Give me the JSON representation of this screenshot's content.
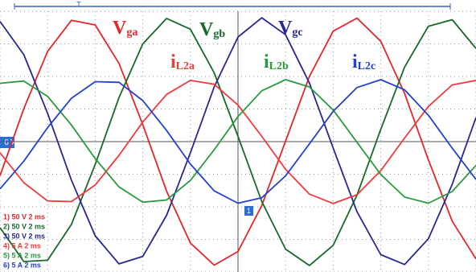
{
  "chart_data": {
    "type": "line",
    "x": [
      0,
      0.5,
      1,
      1.5,
      2,
      2.5,
      3,
      3.5,
      4,
      4.5,
      5,
      5.5,
      6,
      6.5,
      7,
      7.5,
      8,
      8.5,
      9,
      9.5,
      10
    ],
    "xlim": [
      0,
      10
    ],
    "ylim": [
      -4,
      4
    ],
    "grid": true,
    "series": [
      {
        "name": "Vga",
        "color": "#e3262b",
        "values": [
          -1.05,
          1.01,
          2.77,
          3.72,
          3.58,
          2.4,
          0.52,
          -1.52,
          -3.11,
          -3.79,
          -3.37,
          -1.96,
          0.02,
          2.0,
          3.39,
          3.79,
          3.08,
          1.48,
          -0.56,
          -2.44,
          -3.6
        ]
      },
      {
        "name": "Vgb",
        "color": "#17682a",
        "values": [
          -2.64,
          -3.68,
          -3.64,
          -2.54,
          -0.7,
          1.35,
          3.0,
          3.78,
          3.45,
          2.11,
          0.16,
          -1.84,
          -3.3,
          -3.8,
          -3.18,
          -1.64,
          0.38,
          2.29,
          3.54,
          3.74,
          2.86
        ]
      },
      {
        "name": "Vgc",
        "color": "#27278f",
        "values": [
          3.69,
          2.67,
          0.87,
          -1.18,
          -2.89,
          -3.75,
          -3.52,
          -2.26,
          -0.34,
          1.68,
          3.21,
          3.8,
          3.28,
          1.8,
          -0.2,
          -2.15,
          -3.47,
          -3.77,
          -2.98,
          -1.31,
          0.74
        ]
      },
      {
        "name": "iL2a",
        "color": "#f23a3a",
        "values": [
          -0.34,
          -1.26,
          -1.82,
          -1.84,
          -1.33,
          -0.42,
          0.6,
          1.45,
          1.88,
          1.76,
          1.12,
          0.16,
          -0.85,
          -1.61,
          -1.9,
          -1.63,
          -0.89,
          0.11,
          1.08,
          1.74,
          1.88
        ]
      },
      {
        "name": "iL2b",
        "color": "#2a9a3e",
        "values": [
          1.79,
          1.86,
          1.39,
          0.51,
          -0.52,
          -1.39,
          -1.86,
          -1.79,
          -1.19,
          -0.25,
          0.77,
          1.56,
          1.9,
          1.68,
          0.97,
          -0.02,
          -1.01,
          -1.7,
          -1.89,
          -1.53,
          -0.73
        ]
      },
      {
        "name": "iL2c",
        "color": "#2440d0",
        "values": [
          -1.45,
          -0.6,
          0.43,
          1.33,
          1.84,
          1.82,
          1.26,
          0.34,
          -0.69,
          -1.51,
          -1.89,
          -1.72,
          -1.05,
          -0.07,
          0.93,
          1.66,
          1.9,
          1.59,
          0.81,
          -0.2,
          -1.16
        ]
      }
    ],
    "channels": [
      {
        "text": "1) 50 V  2 ms",
        "color": "#e3262b"
      },
      {
        "text": "2) 50 V  2 ms",
        "color": "#17682a"
      },
      {
        "text": "3) 50 V  2 ms",
        "color": "#27278f"
      },
      {
        "text": "4) 5 A  2 ms",
        "color": "#f23a3a"
      },
      {
        "text": "5) 5 A  2 ms",
        "color": "#2a9a3e"
      },
      {
        "text": "6) 5 A  2 ms",
        "color": "#2440d0"
      }
    ],
    "trigger_label": "T",
    "ground_marker": "6",
    "cursor_label": "1"
  }
}
